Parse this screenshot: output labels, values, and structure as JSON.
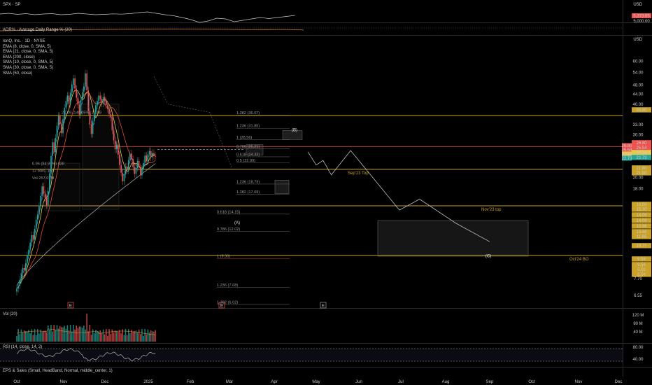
{
  "header": {
    "spx_label": "SPX · SP",
    "spx_currency": "USD",
    "spx_price": "5,373.65",
    "spx_price_below": "5,000.00",
    "adr_label": "ADR% - Average Daily Range % (20)",
    "main_currency": "USD"
  },
  "legend": [
    "IonQ, Inc. · 1D · NYSE",
    "EMA (8, close, 0, SMA, 5)",
    "EMA (21, close, 0, SMA, 5)",
    "EMA (200, close)",
    "SMA (10, close, 0, SMA, 5)",
    "SMA (30, close, 0, SMA, 5)",
    "SMA (50, close)"
  ],
  "panes": {
    "vol_label": "Vol (20)",
    "rsi_label": "RSI (14, close, 14, 2)",
    "eps_label": "EPS & Sales (Small, HeadBand, Normal, middle_center, 1)"
  },
  "colors": {
    "up": "#26a69a",
    "down": "#ef5350",
    "level": "#c9a227",
    "ema21": "#e04c3c",
    "ema8": "#e8c84a",
    "ema200": "#9e9e9e",
    "sma10": "#3b7fdb",
    "projection": "#bdbdbd"
  },
  "chart_data": {
    "type": "candlestick",
    "symbol": "IonQ, Inc.",
    "interval": "1D",
    "exchange": "NYSE",
    "y_scale": "log",
    "ylim": [
      5.9,
      72
    ],
    "x_ticks": [
      "Oct",
      "Nov",
      "Dec",
      "2025",
      "Feb",
      "Mar",
      "Apr",
      "May",
      "Jun",
      "Jul",
      "Aug",
      "Sep",
      "Oct",
      "Nov",
      "Dec"
    ],
    "y_ticks": [
      "60.00",
      "54.00",
      "48.00",
      "44.00",
      "40.00",
      "33.00",
      "30.00",
      "20.00",
      "18.00",
      "7.70",
      "6.55"
    ],
    "price_labels": [
      "35.90",
      "26.80",
      "25.54",
      "24.44",
      "22.73",
      "21.60",
      "21.80",
      "16.50",
      "15.30",
      "14.09",
      "14.09",
      "13.66",
      "13.66",
      "11.65",
      "10.77",
      "9.58",
      "9.56",
      "9.02",
      "8.56"
    ],
    "price_tags": [
      {
        "text": "26.80",
        "color": "#ef5350"
      },
      {
        "text": "25.54",
        "color": "#ef5350"
      },
      {
        "text": "24.44",
        "color": "#e8c84a"
      },
      {
        "text": "22.73",
        "color": "#26a69a"
      }
    ],
    "horizontal_levels": [
      {
        "value": 35.9
      },
      {
        "value": 26.8
      },
      {
        "value": 21.6,
        "label": "Sep'23 Top"
      },
      {
        "value": 15.3,
        "label": "Nov'23 top"
      },
      {
        "value": 9.58,
        "label": "Oct'24 BO"
      }
    ],
    "fib_labels": [
      {
        "text": "1.382 (36.07)",
        "value": 36.07
      },
      {
        "text": "1.236 (31.85)",
        "value": 31.85
      },
      {
        "text": "1 (28.56)",
        "value": 28.56
      },
      {
        "text": "0.786 (26.21)",
        "value": 26.21
      },
      {
        "text": "0.618 (24.33)",
        "value": 24.33
      },
      {
        "text": "0.5 (22.99)",
        "value": 22.99
      },
      {
        "text": "1.236 (18.79)",
        "value": 18.79
      },
      {
        "text": "1.382 (17.09)",
        "value": 17.09
      },
      {
        "text": "0.618 (14.15)",
        "value": 14.15
      },
      {
        "text": "0.786 (12.02)",
        "value": 12.02
      },
      {
        "text": "1 (9.30)",
        "value": 9.3
      },
      {
        "text": "1.236 (7.08)",
        "value": 7.08
      },
      {
        "text": "1.382 (6.02)",
        "value": 6.02
      }
    ],
    "measure_labels": [
      {
        "text": "21.09 (149.05%) 2,109",
        "value": 36.5
      },
      {
        "text": "6.96 (84.91%) 838",
        "value": 22.5
      },
      {
        "text": "12 bars, 16d",
        "value": 21.1
      },
      {
        "text": "Vol 257.07M",
        "value": 19.7
      }
    ],
    "wave_labels": [
      {
        "text": "(A)",
        "value": 12.9
      },
      {
        "text": "(B)",
        "value": 31.0
      },
      {
        "text": "(C)",
        "value": 9.4
      }
    ],
    "earnings_markers": [
      "E",
      "E",
      "E"
    ],
    "closes": [
      7.0,
      7.2,
      7.6,
      8.1,
      8.5,
      8.3,
      8.9,
      9.6,
      10.1,
      10.8,
      11.6,
      11.1,
      12.3,
      13.4,
      14.1,
      15.2,
      16.8,
      18.4,
      17.2,
      16.5,
      15.4,
      17.6,
      20.8,
      24.5,
      27.9,
      25.4,
      29.1,
      32.6,
      35.8,
      33.1,
      30.4,
      34.8,
      38.6,
      41.2,
      43.4,
      40.1,
      44.6,
      48.2,
      51.0,
      46.3,
      42.5,
      39.8,
      36.2,
      41.5,
      44.8,
      47.3,
      53.5,
      45.6,
      37.4,
      33.0,
      30.2,
      34.1,
      36.8,
      39.6,
      41.2,
      43.4,
      42.0,
      40.3,
      42.8,
      41.1,
      39.7,
      38.2,
      36.4,
      35.3,
      31.2,
      28.4,
      26.1,
      27.3,
      24.8,
      22.5,
      20.9,
      19.3,
      20.6,
      22.2,
      21.4,
      23.6,
      25.1,
      23.8,
      22.0,
      20.7,
      21.9,
      23.4,
      22.1,
      20.4,
      21.7,
      22.9,
      24.6,
      23.3,
      24.9,
      25.7,
      24.2,
      25.2,
      24.5,
      24.4
    ],
    "projection_path": [
      {
        "date": "2025-04-25",
        "value": 25.5
      },
      {
        "date": "2025-05-01",
        "value": 22.5
      },
      {
        "date": "2025-05-06",
        "value": 23.5
      },
      {
        "date": "2025-05-12",
        "value": 20.5
      },
      {
        "date": "2025-05-26",
        "value": 25.8
      },
      {
        "date": "2025-06-30",
        "value": 14.7
      },
      {
        "date": "2025-07-14",
        "value": 16.3
      },
      {
        "date": "2025-08-08",
        "value": 13.0
      },
      {
        "date": "2025-09-01",
        "value": 10.9
      }
    ],
    "volume_axis": [
      "120 M",
      "80 M",
      "40 M"
    ],
    "rsi_axis": [
      "80.00",
      "40.00"
    ]
  }
}
